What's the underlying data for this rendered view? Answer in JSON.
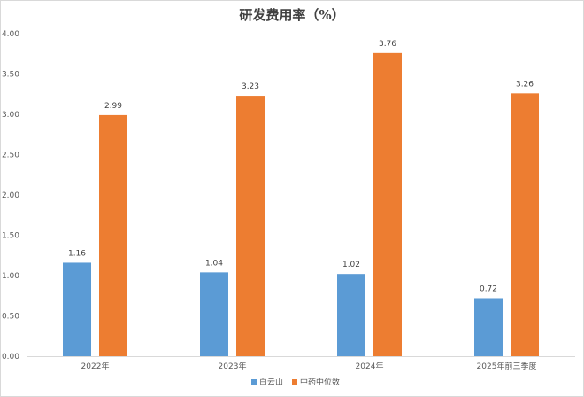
{
  "chart_data": {
    "type": "bar",
    "title": "研发费用率（%）",
    "categories": [
      "2022年",
      "2023年",
      "2024年",
      "2025年前三季度"
    ],
    "series": [
      {
        "name": "白云山",
        "values": [
          1.16,
          1.04,
          1.02,
          0.72
        ],
        "color": "#5B9BD5"
      },
      {
        "name": "中药中位数",
        "values": [
          2.99,
          3.23,
          3.76,
          3.26
        ],
        "color": "#ED7D31"
      }
    ],
    "ylim": [
      0,
      4
    ],
    "yticks": [
      "0.00",
      "0.50",
      "1.00",
      "1.50",
      "2.00",
      "2.50",
      "3.00",
      "3.50",
      "4.00"
    ],
    "grid": false,
    "legend": "bottom",
    "data_labels": true
  }
}
